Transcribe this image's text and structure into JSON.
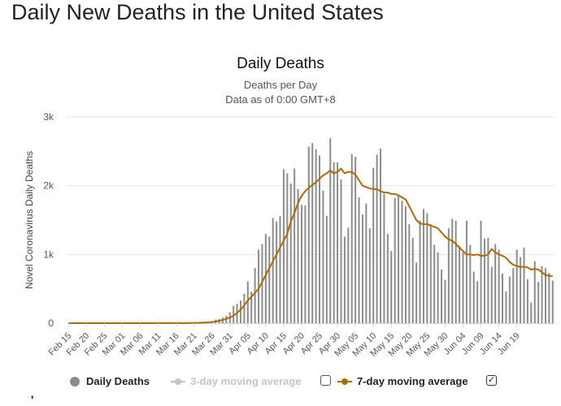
{
  "page_title": "Daily New Deaths in the United States",
  "legend": [
    {
      "label": "Daily Deaths",
      "color": "#8c8c8c",
      "active": true
    },
    {
      "label": "3-day moving average",
      "color": "#c4c4c4",
      "active": false
    },
    {
      "label": "7-day moving average",
      "color": "#b06a00",
      "active": true
    }
  ],
  "checkboxes": {
    "three_day": false,
    "seven_day": true,
    "seven_day_mark": "✓"
  },
  "stray_mark": "'",
  "chart_data": {
    "type": "bar",
    "title": "Daily Deaths",
    "subtitle": "Deaths per Day",
    "subtitle2": "Data as of 0:00 GMT+8",
    "ylabel": "Novel Coronavirus Daily Deaths",
    "xlabel": "",
    "ylim": [
      0,
      3000
    ],
    "yticks": [
      0,
      1000,
      2000,
      3000
    ],
    "ytick_labels": [
      "0",
      "1k",
      "2k",
      "3k"
    ],
    "start_date": "Feb 15",
    "x_tick_labels": [
      "Feb 15",
      "Feb 20",
      "Feb 25",
      "Mar 01",
      "Mar 06",
      "Mar 11",
      "Mar 16",
      "Mar 21",
      "Mar 26",
      "Mar 31",
      "Apr 05",
      "Apr 10",
      "Apr 15",
      "Apr 20",
      "Apr 25",
      "Apr 30",
      "May 05",
      "May 10",
      "May 15",
      "May 20",
      "May 25",
      "May 30",
      "Jun 04",
      "Jun 09",
      "Jun 14",
      "Jun 19"
    ],
    "series": [
      {
        "name": "Daily Deaths",
        "color": "#8c8c8c",
        "values": [
          0,
          0,
          0,
          0,
          0,
          0,
          0,
          0,
          0,
          0,
          0,
          0,
          0,
          0,
          0,
          0,
          0,
          0,
          0,
          0,
          0,
          0,
          0,
          0,
          0,
          1,
          1,
          2,
          2,
          2,
          3,
          3,
          5,
          4,
          8,
          5,
          8,
          10,
          14,
          22,
          30,
          50,
          60,
          80,
          110,
          160,
          250,
          280,
          330,
          430,
          610,
          460,
          800,
          1070,
          1150,
          1300,
          1260,
          1530,
          1480,
          1560,
          2240,
          2180,
          2030,
          2250,
          1950,
          1720,
          1710,
          2570,
          2620,
          2530,
          2440,
          1930,
          1560,
          2690,
          2340,
          2340,
          2090,
          1260,
          1390,
          2460,
          2420,
          1830,
          1580,
          1740,
          1380,
          2260,
          2450,
          2540,
          1880,
          1300,
          1050,
          1820,
          1850,
          1780,
          1700,
          1440,
          1240,
          880,
          1490,
          1660,
          1600,
          1440,
          1140,
          1030,
          780,
          630,
          1380,
          1520,
          1490,
          1120,
          1030,
          1490,
          1140,
          750,
          610,
          1490,
          1230,
          1240,
          820,
          1150,
          1070,
          720,
          460,
          680,
          800,
          1070,
          960,
          1100,
          640,
          300,
          900,
          600,
          830,
          800,
          730,
          620
        ]
      },
      {
        "name": "7-day moving average",
        "color": "#b06a00",
        "values": [
          0,
          0,
          0,
          0,
          0,
          0,
          0,
          0,
          0,
          0,
          0,
          0,
          0,
          0,
          0,
          0,
          0,
          0,
          0,
          0,
          0,
          0,
          0,
          0,
          0,
          1,
          1,
          1,
          1,
          2,
          2,
          2,
          2,
          3,
          3,
          4,
          5,
          7,
          9,
          12,
          16,
          24,
          34,
          47,
          63,
          83,
          108,
          148,
          198,
          258,
          330,
          383,
          440,
          500,
          600,
          700,
          800,
          900,
          1000,
          1100,
          1200,
          1300,
          1480,
          1600,
          1750,
          1850,
          1920,
          1970,
          2010,
          2050,
          2100,
          2150,
          2180,
          2220,
          2180,
          2200,
          2250,
          2180,
          2200,
          2200,
          2160,
          2080,
          2000,
          1980,
          1960,
          1950,
          1950,
          1920,
          1900,
          1900,
          1880,
          1880,
          1860,
          1830,
          1800,
          1700,
          1600,
          1500,
          1450,
          1440,
          1440,
          1420,
          1400,
          1380,
          1320,
          1260,
          1220,
          1200,
          1150,
          1100,
          1050,
          1000,
          1000,
          990,
          1000,
          980,
          980,
          1000,
          1080,
          1030,
          1000,
          980,
          950,
          890,
          850,
          830,
          820,
          820,
          810,
          780,
          790,
          780,
          740,
          700,
          690,
          680
        ]
      }
    ]
  }
}
